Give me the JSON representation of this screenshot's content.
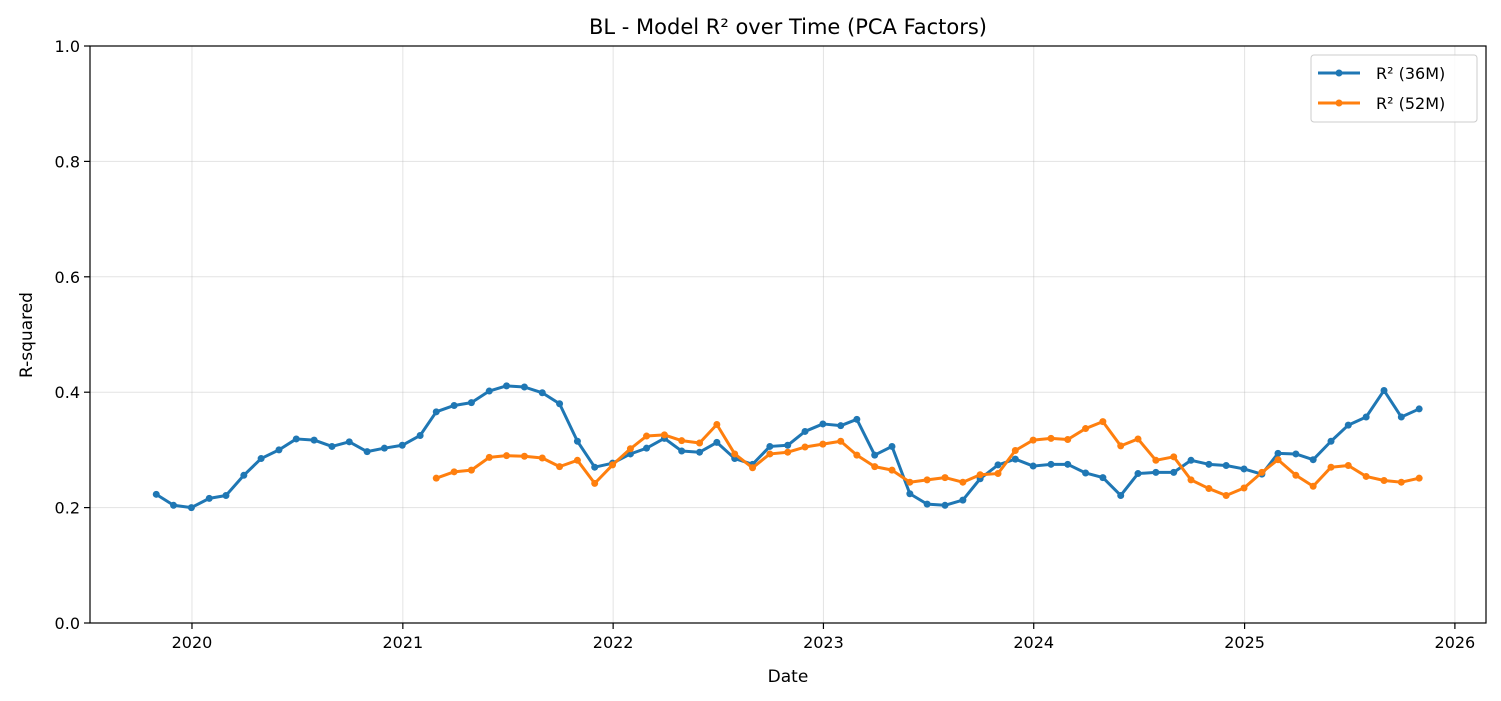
{
  "chart_data": {
    "type": "line",
    "title": "BL - Model R² over Time (PCA Factors)",
    "xlabel": "Date",
    "ylabel": "R-squared",
    "xlim": [
      "2019-07-08",
      "2026-02-24"
    ],
    "ylim": [
      0,
      1.0
    ],
    "x_ticks": [
      "2020",
      "2021",
      "2022",
      "2023",
      "2024",
      "2025",
      "2026"
    ],
    "y_ticks": [
      "0.0",
      "0.2",
      "0.4",
      "0.6",
      "0.8",
      "1.0"
    ],
    "grid": true,
    "legend_position": "top-right",
    "series": [
      {
        "name": "R² (36M)",
        "color": "#1f77b4",
        "marker": "circle",
        "x": [
          "2019-10-31",
          "2019-11-30",
          "2019-12-31",
          "2020-01-31",
          "2020-02-29",
          "2020-03-31",
          "2020-04-30",
          "2020-05-31",
          "2020-06-30",
          "2020-07-31",
          "2020-08-31",
          "2020-09-30",
          "2020-10-31",
          "2020-11-30",
          "2020-12-31",
          "2021-01-31",
          "2021-02-28",
          "2021-03-31",
          "2021-04-30",
          "2021-05-31",
          "2021-06-30",
          "2021-07-31",
          "2021-08-31",
          "2021-09-30",
          "2021-10-31",
          "2021-11-30",
          "2021-12-31",
          "2022-01-31",
          "2022-02-28",
          "2022-03-31",
          "2022-04-30",
          "2022-05-31",
          "2022-06-30",
          "2022-07-31",
          "2022-08-31",
          "2022-09-30",
          "2022-10-31",
          "2022-11-30",
          "2022-12-31",
          "2023-01-31",
          "2023-02-28",
          "2023-03-31",
          "2023-04-30",
          "2023-05-31",
          "2023-06-30",
          "2023-07-31",
          "2023-08-31",
          "2023-09-30",
          "2023-10-31",
          "2023-11-30",
          "2023-12-31",
          "2024-01-31",
          "2024-02-29",
          "2024-03-31",
          "2024-04-30",
          "2024-05-31",
          "2024-06-30",
          "2024-07-31",
          "2024-08-31",
          "2024-09-30",
          "2024-10-31",
          "2024-11-30",
          "2024-12-31",
          "2025-01-31",
          "2025-02-28",
          "2025-03-31",
          "2025-04-30",
          "2025-05-31",
          "2025-06-30",
          "2025-07-31",
          "2025-08-31",
          "2025-09-30",
          "2025-10-31"
        ],
        "values": [
          0.223,
          0.204,
          0.2,
          0.216,
          0.221,
          0.256,
          0.285,
          0.3,
          0.319,
          0.317,
          0.306,
          0.314,
          0.297,
          0.303,
          0.308,
          0.325,
          0.366,
          0.377,
          0.382,
          0.402,
          0.411,
          0.409,
          0.399,
          0.38,
          0.315,
          0.27,
          0.277,
          0.293,
          0.303,
          0.32,
          0.298,
          0.296,
          0.313,
          0.285,
          0.275,
          0.306,
          0.308,
          0.332,
          0.345,
          0.342,
          0.353,
          0.291,
          0.306,
          0.224,
          0.206,
          0.204,
          0.213,
          0.25,
          0.274,
          0.284,
          0.272,
          0.275,
          0.275,
          0.26,
          0.252,
          0.221,
          0.259,
          0.261,
          0.261,
          0.282,
          0.275,
          0.273,
          0.267,
          0.258,
          0.294,
          0.293,
          0.283,
          0.315,
          0.343,
          0.357,
          0.403,
          0.357,
          0.371
        ]
      },
      {
        "name": "R² (52M)",
        "color": "#ff7f0e",
        "marker": "circle",
        "x": [
          "2021-02-28",
          "2021-03-31",
          "2021-04-30",
          "2021-05-31",
          "2021-06-30",
          "2021-07-31",
          "2021-08-31",
          "2021-09-30",
          "2021-10-31",
          "2021-11-30",
          "2021-12-31",
          "2022-01-31",
          "2022-02-28",
          "2022-03-31",
          "2022-04-30",
          "2022-05-31",
          "2022-06-30",
          "2022-07-31",
          "2022-08-31",
          "2022-09-30",
          "2022-10-31",
          "2022-11-30",
          "2022-12-31",
          "2023-01-31",
          "2023-02-28",
          "2023-03-31",
          "2023-04-30",
          "2023-05-31",
          "2023-06-30",
          "2023-07-31",
          "2023-08-31",
          "2023-09-30",
          "2023-10-31",
          "2023-11-30",
          "2023-12-31",
          "2024-01-31",
          "2024-02-29",
          "2024-03-31",
          "2024-04-30",
          "2024-05-31",
          "2024-06-30",
          "2024-07-31",
          "2024-08-31",
          "2024-09-30",
          "2024-10-31",
          "2024-11-30",
          "2024-12-31",
          "2025-01-31",
          "2025-02-28",
          "2025-03-31",
          "2025-04-30",
          "2025-05-31",
          "2025-06-30",
          "2025-07-31",
          "2025-08-31",
          "2025-09-30",
          "2025-10-31"
        ],
        "values": [
          0.251,
          0.262,
          0.265,
          0.287,
          0.29,
          0.289,
          0.286,
          0.271,
          0.282,
          0.242,
          0.274,
          0.302,
          0.324,
          0.326,
          0.316,
          0.312,
          0.344,
          0.293,
          0.269,
          0.293,
          0.296,
          0.305,
          0.31,
          0.315,
          0.291,
          0.271,
          0.265,
          0.244,
          0.248,
          0.252,
          0.244,
          0.257,
          0.259,
          0.299,
          0.317,
          0.32,
          0.318,
          0.337,
          0.349,
          0.307,
          0.319,
          0.282,
          0.288,
          0.248,
          0.233,
          0.221,
          0.234,
          0.261,
          0.283,
          0.256,
          0.237,
          0.27,
          0.273,
          0.254,
          0.247,
          0.244,
          0.251
        ]
      }
    ]
  }
}
